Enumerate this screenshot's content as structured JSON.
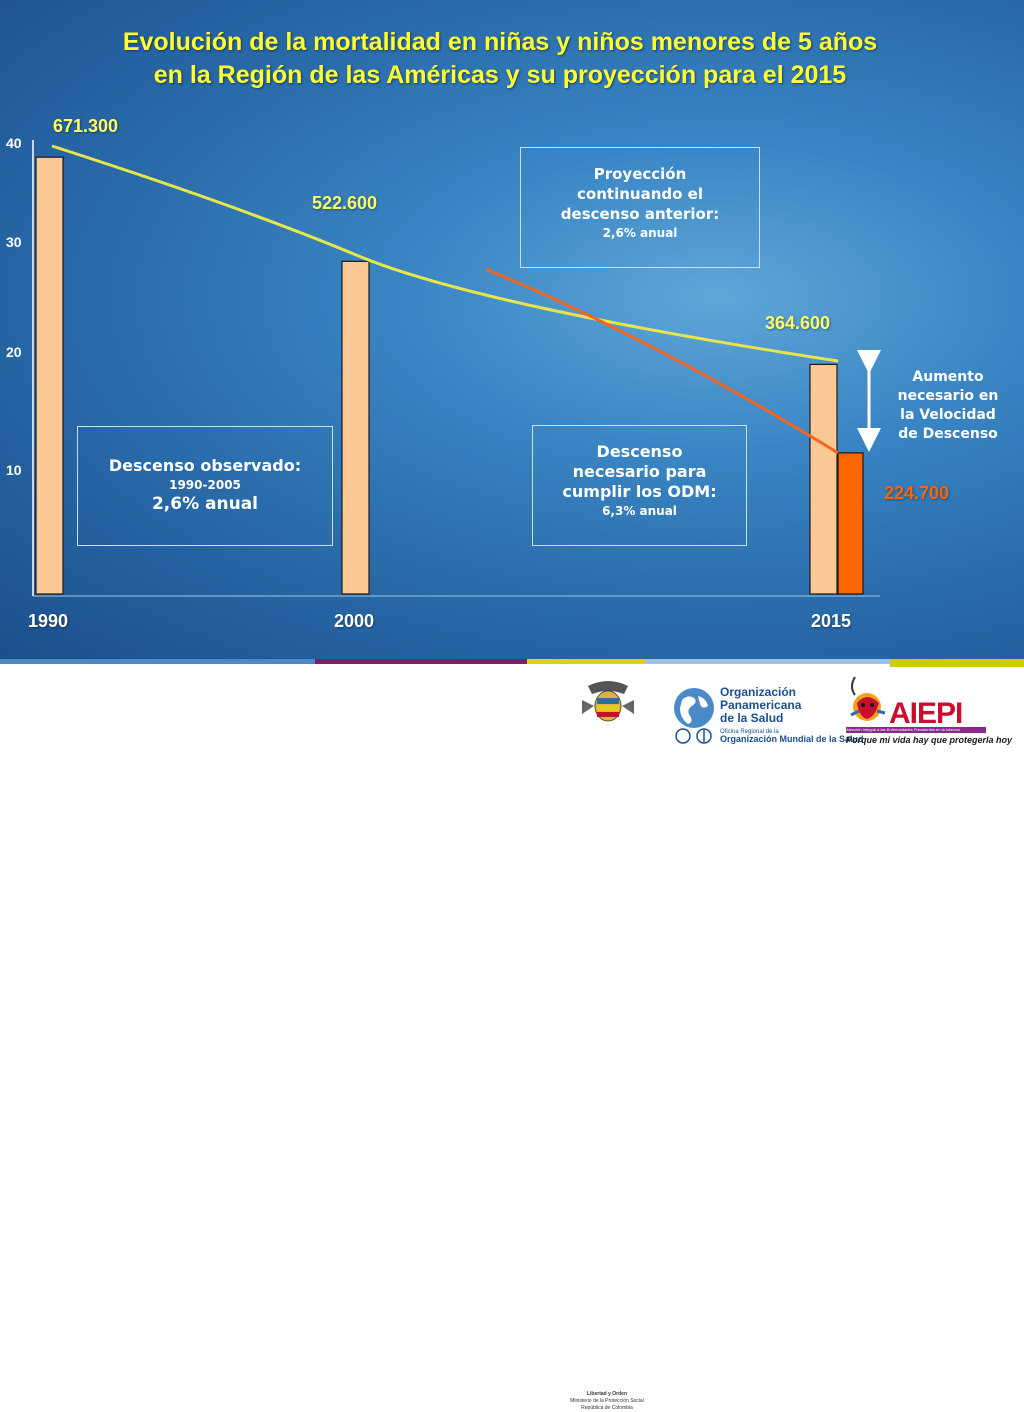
{
  "title": {
    "line1": "Evolución de la mortalidad en niñas y niños menores de 5 años",
    "line2": "en la Región de las Américas y su proyección para el 2015"
  },
  "colors": {
    "title": "#ffff33",
    "bar_observed": "#fbc996",
    "bar_target": "#ff6600",
    "line_projection": "#e6e64a",
    "line_required": "#f26522",
    "label_observed": "#ffff66",
    "label_target": "#ff6600"
  },
  "chart_data": {
    "type": "bar",
    "y_ticks": [
      "10",
      "20",
      "30",
      "40"
    ],
    "y_tick_values": [
      10,
      20,
      30,
      40
    ],
    "ylim": [
      0,
      40
    ],
    "categories": [
      "1990",
      "2000",
      "2015"
    ],
    "series": [
      {
        "values": [
          39,
          29.7,
          20.5
        ]
      },
      {
        "values": [
          null,
          null,
          12.6
        ]
      }
    ],
    "data_labels": [
      "671.300",
      "522.600",
      "364.600",
      "224.700"
    ],
    "lines": [
      {
        "points": [
          [
            1990,
            40
          ],
          [
            2000,
            30.2
          ],
          [
            2015,
            20.8
          ]
        ]
      },
      {
        "points": [
          [
            2004,
            29
          ],
          [
            2009,
            24
          ],
          [
            2015,
            12.6
          ]
        ]
      }
    ]
  },
  "boxes": {
    "projection": {
      "line1": "Proyección",
      "line2": "continuando el",
      "line3": "descenso anterior:",
      "rate": "2,6% anual"
    },
    "observed": {
      "line1": "Descenso observado:",
      "period": "1990-2005",
      "rate": "2,6% anual"
    },
    "required": {
      "line1": "Descenso",
      "line2": "necesario para",
      "line3": "cumplir los ODM:",
      "rate": "6,3% anual"
    }
  },
  "speed_note": {
    "line1": "Aumento",
    "line2": "necesario en",
    "line3": "la Velocidad",
    "line4": "de Descenso"
  },
  "footer": {
    "colombia": {
      "line1": "Libertad y Orden",
      "line2": "Ministerio de la Protección Social",
      "line3": "República de Colombia"
    },
    "ops": {
      "line1": "Organización",
      "line2": "Panamericana",
      "line3": "de la Salud",
      "sub1": "Oficina Regional de la",
      "sub2": "Organización Mundial de la Salud"
    },
    "aiepi": {
      "name": "AIEPI",
      "bar_text": "Atención Integral a las Enfermedades Prevalentes en la Infancia",
      "slogan": "Porque mi vida hay que protegerla hoy"
    }
  }
}
